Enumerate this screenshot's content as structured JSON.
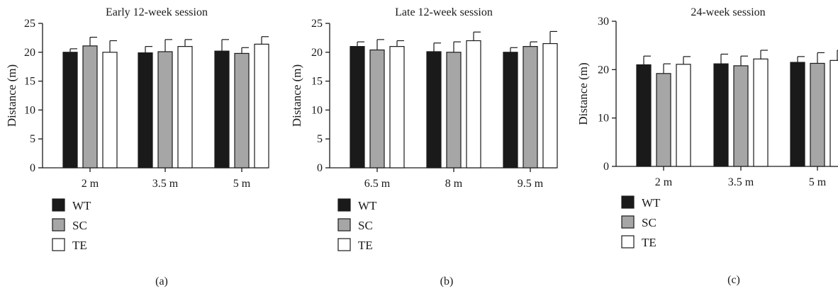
{
  "colors": {
    "WT": "#1a1a1a",
    "SC": "#a6a6a6",
    "TE": "#ffffff"
  },
  "chart_data": [
    {
      "type": "bar",
      "panel_label": "(a)",
      "title": "Early 12-week session",
      "ylabel": "Distance (m)",
      "xlabel": "",
      "ylim": [
        0,
        25
      ],
      "yticks": [
        0,
        5,
        10,
        15,
        20,
        25
      ],
      "categories": [
        "2 m",
        "3.5 m",
        "5 m"
      ],
      "legend_position": "bottom-left",
      "series": [
        {
          "name": "WT",
          "values": [
            20.0,
            19.9,
            20.2
          ],
          "errors": [
            0.6,
            1.1,
            2.0
          ]
        },
        {
          "name": "SC",
          "values": [
            21.1,
            20.1,
            19.8
          ],
          "errors": [
            1.5,
            2.1,
            1.0
          ]
        },
        {
          "name": "TE",
          "values": [
            20.0,
            21.0,
            21.4
          ],
          "errors": [
            2.0,
            1.2,
            1.3
          ]
        }
      ]
    },
    {
      "type": "bar",
      "panel_label": "(b)",
      "title": "Late 12-week session",
      "ylabel": "Distance (m)",
      "xlabel": "",
      "ylim": [
        0,
        25
      ],
      "yticks": [
        0,
        5,
        10,
        15,
        20,
        25
      ],
      "categories": [
        "6.5 m",
        "8 m",
        "9.5 m"
      ],
      "legend_position": "bottom-left",
      "series": [
        {
          "name": "WT",
          "values": [
            21.0,
            20.1,
            20.0
          ],
          "errors": [
            0.8,
            1.5,
            0.8
          ]
        },
        {
          "name": "SC",
          "values": [
            20.4,
            20.0,
            21.0
          ],
          "errors": [
            1.8,
            1.8,
            0.8
          ]
        },
        {
          "name": "TE",
          "values": [
            21.0,
            22.0,
            21.5
          ],
          "errors": [
            1.0,
            1.5,
            2.1
          ]
        }
      ]
    },
    {
      "type": "bar",
      "panel_label": "(c)",
      "title": "24-week session",
      "ylabel": "Distance (m)",
      "xlabel": "",
      "ylim": [
        0,
        30
      ],
      "yticks": [
        0,
        10,
        20,
        30
      ],
      "categories": [
        "2 m",
        "3.5 m",
        "5 m"
      ],
      "legend_position": "bottom-left",
      "series": [
        {
          "name": "WT",
          "values": [
            21.0,
            21.2,
            21.5
          ],
          "errors": [
            1.8,
            2.0,
            1.2
          ]
        },
        {
          "name": "SC",
          "values": [
            19.2,
            20.8,
            21.3
          ],
          "errors": [
            2.0,
            2.0,
            2.2
          ]
        },
        {
          "name": "TE",
          "values": [
            21.1,
            22.2,
            21.9
          ],
          "errors": [
            1.6,
            1.8,
            2.1
          ]
        }
      ]
    }
  ]
}
